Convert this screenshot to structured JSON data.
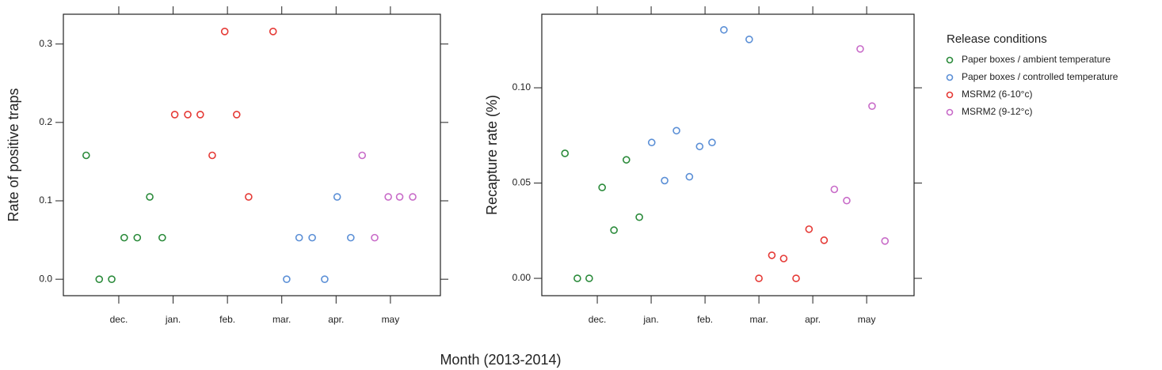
{
  "xlabel": "Month (2013-2014)",
  "chart_data": [
    {
      "type": "scatter",
      "ylabel": "Rate of positive traps",
      "xlim": [
        10.98,
        17.92
      ],
      "ylim": [
        -0.021,
        0.338
      ],
      "xticks": [
        {
          "value": 12,
          "label": "dec."
        },
        {
          "value": 13,
          "label": "jan."
        },
        {
          "value": 14,
          "label": "feb."
        },
        {
          "value": 15,
          "label": "mar."
        },
        {
          "value": 16,
          "label": "apr."
        },
        {
          "value": 17,
          "label": "may"
        }
      ],
      "yticks": [
        {
          "value": 0,
          "label": "0.0"
        },
        0.1,
        0.2,
        0.3
      ],
      "series": [
        {
          "name": "Paper boxes / ambient temperature",
          "color": "#2a8a3a",
          "x": [
            11.4,
            11.64,
            11.87,
            12.1,
            12.34,
            12.57,
            12.8
          ],
          "values": [
            0.158,
            0,
            0,
            0.053,
            0.053,
            0.105,
            0.053
          ]
        },
        {
          "name": "Paper boxes / controlled temperature",
          "color": "#5b8fd6",
          "x": [
            15.09,
            15.32,
            15.56,
            15.79,
            16.02,
            16.27
          ],
          "values": [
            0,
            0.053,
            0.053,
            0,
            0.105,
            0.053
          ]
        },
        {
          "name": "MSRM2 (6-10°c)",
          "color": "#e53935",
          "x": [
            13.03,
            13.27,
            13.5,
            13.72,
            13.95,
            14.17,
            14.39,
            14.84
          ],
          "values": [
            0.21,
            0.21,
            0.21,
            0.158,
            0.316,
            0.21,
            0.105,
            0.316
          ]
        },
        {
          "name": "MSRM2 (9-12°c)",
          "color": "#c86bc8",
          "x": [
            16.48,
            16.71,
            16.96,
            17.17,
            17.41
          ],
          "values": [
            0.158,
            0.053,
            0.105,
            0.105,
            0.105
          ]
        }
      ]
    },
    {
      "type": "scatter",
      "ylabel": "Recapture rate (%)",
      "legend_title": "Release conditions",
      "xlim": [
        10.97,
        17.88
      ],
      "ylim": [
        -0.0091,
        0.1386
      ],
      "xticks": [
        {
          "value": 12,
          "label": "dec."
        },
        {
          "value": 13,
          "label": "jan."
        },
        {
          "value": 14,
          "label": "feb."
        },
        {
          "value": 15,
          "label": "mar."
        },
        {
          "value": 16,
          "label": "apr."
        },
        {
          "value": 17,
          "label": "may"
        }
      ],
      "yticks": [
        {
          "value": 0,
          "label": "0.00"
        },
        {
          "value": 0.05,
          "label": "0.05"
        },
        {
          "value": 0.1,
          "label": "0.10"
        }
      ],
      "series": [
        {
          "name": "Paper boxes / ambient temperature",
          "color": "#2a8a3a",
          "x": [
            11.4,
            11.63,
            11.85,
            12.09,
            12.31,
            12.54,
            12.78
          ],
          "values": [
            0.0656,
            0,
            0,
            0.0477,
            0.0253,
            0.0622,
            0.0321
          ]
        },
        {
          "name": "Paper boxes / controlled temperature",
          "color": "#5b8fd6",
          "x": [
            13.01,
            13.25,
            13.47,
            13.71,
            13.9,
            14.13,
            14.35,
            14.82
          ],
          "values": [
            0.0713,
            0.0513,
            0.0775,
            0.0533,
            0.0692,
            0.0713,
            0.1304,
            0.1254
          ]
        },
        {
          "name": "MSRM2 (6-10°c)",
          "color": "#e53935",
          "x": [
            15.0,
            15.24,
            15.46,
            15.69,
            15.93,
            16.21
          ],
          "values": [
            0,
            0.0121,
            0.0104,
            0,
            0.0258,
            0.02
          ]
        },
        {
          "name": "MSRM2 (9-12°c)",
          "color": "#c86bc8",
          "x": [
            16.4,
            16.63,
            16.88,
            17.1,
            17.34
          ],
          "values": [
            0.0467,
            0.0408,
            0.1204,
            0.0904,
            0.0196
          ]
        }
      ]
    }
  ]
}
